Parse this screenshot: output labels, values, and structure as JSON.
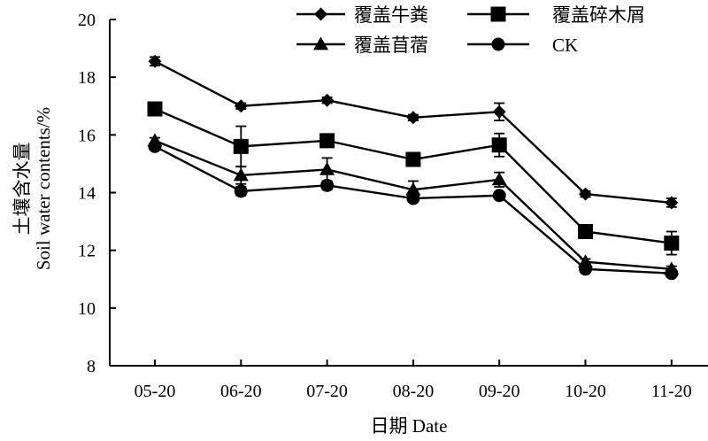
{
  "chart_data": {
    "type": "line",
    "title": "",
    "xlabel": "日期 Date",
    "ylabel_cn": "土壤含水量",
    "ylabel_en": "Soil water contents/%",
    "categories": [
      "05-20",
      "06-20",
      "07-20",
      "08-20",
      "09-20",
      "10-20",
      "11-20"
    ],
    "ylim": [
      8,
      20
    ],
    "yticks": [
      "8",
      "10",
      "12",
      "14",
      "16",
      "18",
      "20"
    ],
    "grid": false,
    "legend_position": "top",
    "series": [
      {
        "name": "覆盖牛粪",
        "marker": "diamond",
        "values": [
          18.55,
          17.0,
          17.2,
          16.6,
          16.8,
          13.95,
          13.65
        ],
        "errors": [
          0.15,
          0.1,
          0.1,
          0.1,
          0.3,
          0.1,
          0.15
        ]
      },
      {
        "name": "覆盖碎木屑",
        "marker": "square",
        "values": [
          16.9,
          15.6,
          15.8,
          15.15,
          15.65,
          12.65,
          12.25
        ],
        "errors": [
          0.15,
          0.7,
          0.1,
          0.1,
          0.4,
          0.1,
          0.4
        ]
      },
      {
        "name": "覆盖苜蓿",
        "marker": "triangle",
        "values": [
          15.8,
          14.6,
          14.8,
          14.1,
          14.45,
          11.6,
          11.35
        ],
        "errors": [
          0.1,
          0.3,
          0.4,
          0.3,
          0.25,
          0.1,
          0.1
        ]
      },
      {
        "name": "CK",
        "marker": "circle",
        "values": [
          15.6,
          14.05,
          14.25,
          13.8,
          13.9,
          11.35,
          11.2
        ],
        "errors": [
          0.1,
          0.15,
          0.15,
          0.1,
          0.1,
          0.1,
          0.1
        ]
      }
    ]
  }
}
